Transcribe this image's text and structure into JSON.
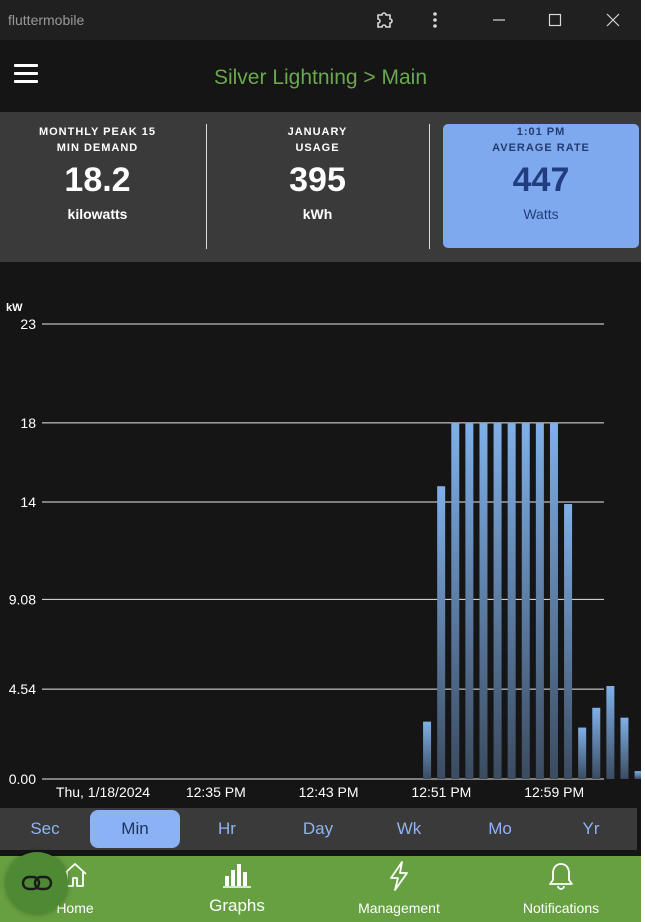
{
  "window": {
    "app_name": "fluttermobile"
  },
  "appbar": {
    "title": "Silver Lightning > Main"
  },
  "stats": [
    {
      "label_line1": "MONTHLY PEAK 15",
      "label_line2": "MIN DEMAND",
      "value": "18.2",
      "unit": "kilowatts"
    },
    {
      "label_line1": "JANUARY",
      "label_line2": "USAGE",
      "value": "395",
      "unit": "kWh"
    },
    {
      "label_line1": "1:01 PM",
      "label_line2": "AVERAGE RATE",
      "value": "447",
      "unit": "Watts"
    }
  ],
  "chart_data": {
    "type": "bar",
    "ylabel": "kW",
    "ylim": [
      0,
      23
    ],
    "y_ticks": [
      0,
      4.54,
      9.08,
      14,
      18,
      23
    ],
    "y_tick_labels": [
      "0.00",
      "4.54",
      "9.08",
      "14",
      "18",
      "23"
    ],
    "x_tick_labels": [
      "Thu, 1/18/2024",
      "12:35 PM",
      "12:43 PM",
      "12:51 PM",
      "12:59 PM"
    ],
    "x_tick_minutes": [
      0,
      8,
      16,
      24,
      32
    ],
    "bars": [
      {
        "minute": 22.7,
        "value": 2.9
      },
      {
        "minute": 23.7,
        "value": 14.8
      },
      {
        "minute": 24.7,
        "value": 18.0
      },
      {
        "minute": 25.7,
        "value": 18.0
      },
      {
        "minute": 26.7,
        "value": 18.0
      },
      {
        "minute": 27.7,
        "value": 18.0
      },
      {
        "minute": 28.7,
        "value": 18.0
      },
      {
        "minute": 29.7,
        "value": 18.0
      },
      {
        "minute": 30.7,
        "value": 18.0
      },
      {
        "minute": 31.7,
        "value": 18.0
      },
      {
        "minute": 32.7,
        "value": 13.9
      },
      {
        "minute": 33.7,
        "value": 2.6
      },
      {
        "minute": 34.7,
        "value": 3.6
      },
      {
        "minute": 35.7,
        "value": 4.7
      },
      {
        "minute": 36.7,
        "value": 3.1
      },
      {
        "minute": 37.7,
        "value": 0.4
      }
    ],
    "bar_color": "#7aaee6",
    "grid": true
  },
  "tabs": [
    "Sec",
    "Min",
    "Hr",
    "Day",
    "Wk",
    "Mo",
    "Yr"
  ],
  "selected_tab": "Min",
  "nav": [
    {
      "label": "Home",
      "icon": "home-icon"
    },
    {
      "label": "Graphs",
      "icon": "bar-chart-icon"
    },
    {
      "label": "Management",
      "icon": "lightning-icon"
    },
    {
      "label": "Notifications",
      "icon": "bell-icon"
    }
  ],
  "fab": {
    "icon": "chain-link-icon"
  }
}
